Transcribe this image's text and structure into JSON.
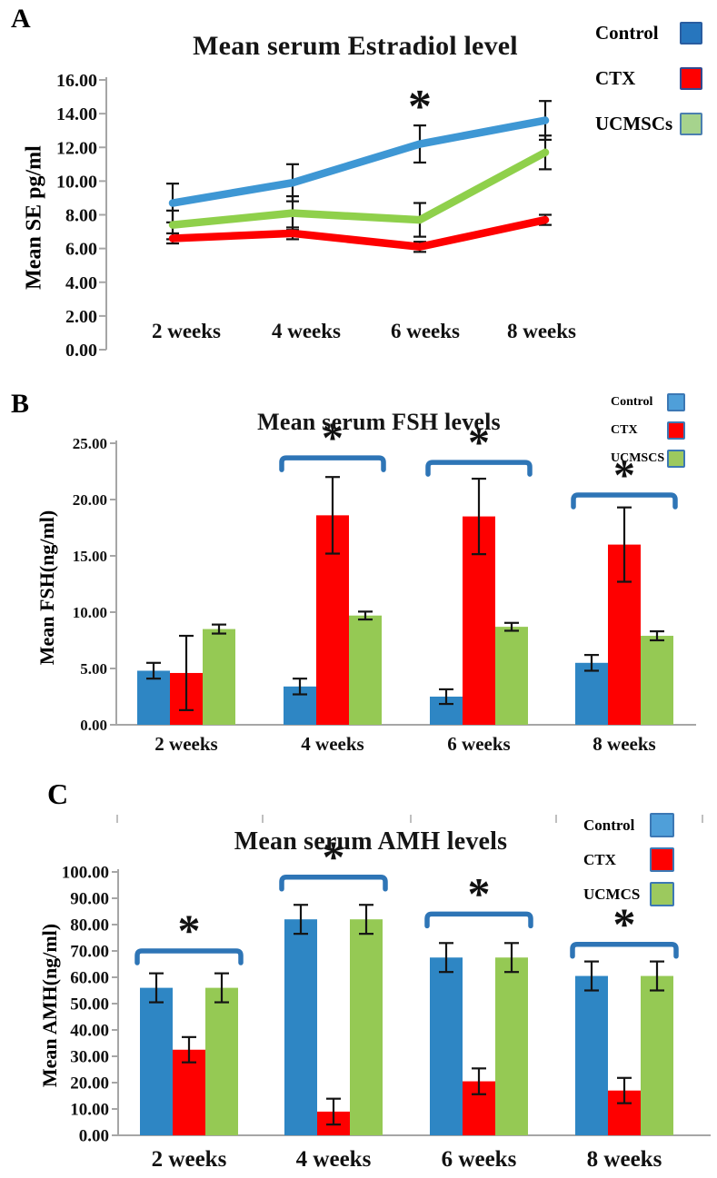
{
  "chart_data": [
    {
      "type": "line",
      "panel_label": "A",
      "title": "Mean serum Estradiol level",
      "xlabel": "",
      "ylabel": "Mean SE pg/ml",
      "categories": [
        "2 weeks",
        "4 weeks",
        "6 weeks",
        "8 weeks"
      ],
      "yticks": [
        "0.00",
        "2.00",
        "4.00",
        "6.00",
        "8.00",
        "10.00",
        "12.00",
        "14.00",
        "16.00"
      ],
      "ylim": [
        0,
        16
      ],
      "grid": false,
      "legend_position": "top-right",
      "series": [
        {
          "name": "Control",
          "color": "#3E97D4",
          "values": [
            8.7,
            9.9,
            12.2,
            13.6
          ],
          "errors": [
            1.15,
            1.1,
            1.1,
            1.15
          ]
        },
        {
          "name": "CTX",
          "color": "#FE0000",
          "values": [
            6.6,
            6.9,
            6.1,
            7.7
          ],
          "errors": [
            0.3,
            0.35,
            0.3,
            0.3
          ]
        },
        {
          "name": "UCMSCs",
          "color": "#8FD04B",
          "values": [
            7.4,
            8.1,
            7.7,
            11.7
          ],
          "errors": [
            0.85,
            1.0,
            1.0,
            1.0
          ]
        }
      ],
      "legend": [
        {
          "label": "Control",
          "fill": "#2776BE",
          "border": "#2A5DA0"
        },
        {
          "label": "CTX",
          "fill": "#FE0000",
          "border": "#33498E"
        },
        {
          "label": "UCMSCs",
          "fill": "#A6D38D",
          "border": "#4C7FB0"
        }
      ],
      "annotations": [
        {
          "type": "asterisk",
          "symbol": "*",
          "category": "6 weeks",
          "category_index": 2,
          "y": 14.6
        }
      ]
    },
    {
      "type": "bar",
      "panel_label": "B",
      "title": "Mean serum FSH  levels",
      "xlabel": "",
      "ylabel": "Mean FSH(ng/ml)",
      "categories": [
        "2 weeks",
        "4 weeks",
        "6 weeks",
        "8 weeks"
      ],
      "yticks": [
        "0.00",
        "5.00",
        "10.00",
        "15.00",
        "20.00",
        "25.00"
      ],
      "ylim": [
        0,
        25
      ],
      "grid": false,
      "legend_position": "top-right",
      "series": [
        {
          "name": "Control",
          "color": "#2E86C4",
          "values": [
            4.8,
            3.4,
            2.5,
            5.5
          ],
          "errors": [
            0.7,
            0.7,
            0.65,
            0.7
          ]
        },
        {
          "name": "CTX",
          "color": "#FE0000",
          "values": [
            4.6,
            18.6,
            18.5,
            16.0
          ],
          "errors": [
            3.3,
            3.4,
            3.35,
            3.3
          ]
        },
        {
          "name": "UCMSCS",
          "color": "#95C954",
          "values": [
            8.5,
            9.7,
            8.7,
            7.9
          ],
          "errors": [
            0.4,
            0.35,
            0.35,
            0.4
          ]
        }
      ],
      "legend": [
        {
          "label": "Control",
          "fill": "#4F9FD9",
          "border": "#3C78B4"
        },
        {
          "label": "CTX",
          "fill": "#FE0000",
          "border": "#3C78B4"
        },
        {
          "label": "UCMSCS",
          "fill": "#9CC95E",
          "border": "#3C78B4"
        }
      ],
      "significance_brackets": [
        {
          "symbol": "*",
          "category": "4 weeks",
          "category_index": 1,
          "y": 23.7
        },
        {
          "symbol": "*",
          "category": "6 weeks",
          "category_index": 2,
          "y": 23.3
        },
        {
          "symbol": "*",
          "category": "8 weeks",
          "category_index": 3,
          "y": 20.4
        }
      ]
    },
    {
      "type": "bar",
      "panel_label": "C",
      "title": "Mean serum AMH levels",
      "xlabel": "",
      "ylabel": "Mean AMH(ng/ml)",
      "categories": [
        "2 weeks",
        "4 weeks",
        "6 weeks",
        "8 weeks"
      ],
      "yticks": [
        "0.00",
        "10.00",
        "20.00",
        "30.00",
        "40.00",
        "50.00",
        "60.00",
        "70.00",
        "80.00",
        "90.00",
        "100.00"
      ],
      "ylim": [
        0,
        100
      ],
      "grid": false,
      "legend_position": "top-right",
      "series": [
        {
          "name": "Control",
          "color": "#2E86C4",
          "values": [
            56.0,
            82.0,
            67.5,
            60.5
          ],
          "errors": [
            5.5,
            5.5,
            5.5,
            5.5
          ]
        },
        {
          "name": "CTX",
          "color": "#FE0000",
          "values": [
            32.5,
            9.0,
            20.5,
            17.0
          ],
          "errors": [
            4.8,
            4.9,
            4.9,
            4.8
          ]
        },
        {
          "name": "UCMCS",
          "color": "#95C954",
          "values": [
            56.0,
            82.0,
            67.5,
            60.5
          ],
          "errors": [
            5.5,
            5.5,
            5.5,
            5.5
          ]
        }
      ],
      "legend": [
        {
          "label": "Control",
          "fill": "#4F9FD9",
          "border": "#3C78B4"
        },
        {
          "label": "CTX",
          "fill": "#FE0000",
          "border": "#3C78B4"
        },
        {
          "label": "UCMCS",
          "fill": "#9CC95E",
          "border": "#3C78B4"
        }
      ],
      "significance_brackets": [
        {
          "symbol": "*",
          "category": "2 weeks",
          "category_index": 0,
          "y": 70.0
        },
        {
          "symbol": "*",
          "category": "4 weeks",
          "category_index": 1,
          "y": 98.0
        },
        {
          "symbol": "*",
          "category": "6 weeks",
          "category_index": 2,
          "y": 84.0
        },
        {
          "symbol": "*",
          "category": "8 weeks",
          "category_index": 3,
          "y": 72.5
        }
      ]
    }
  ]
}
